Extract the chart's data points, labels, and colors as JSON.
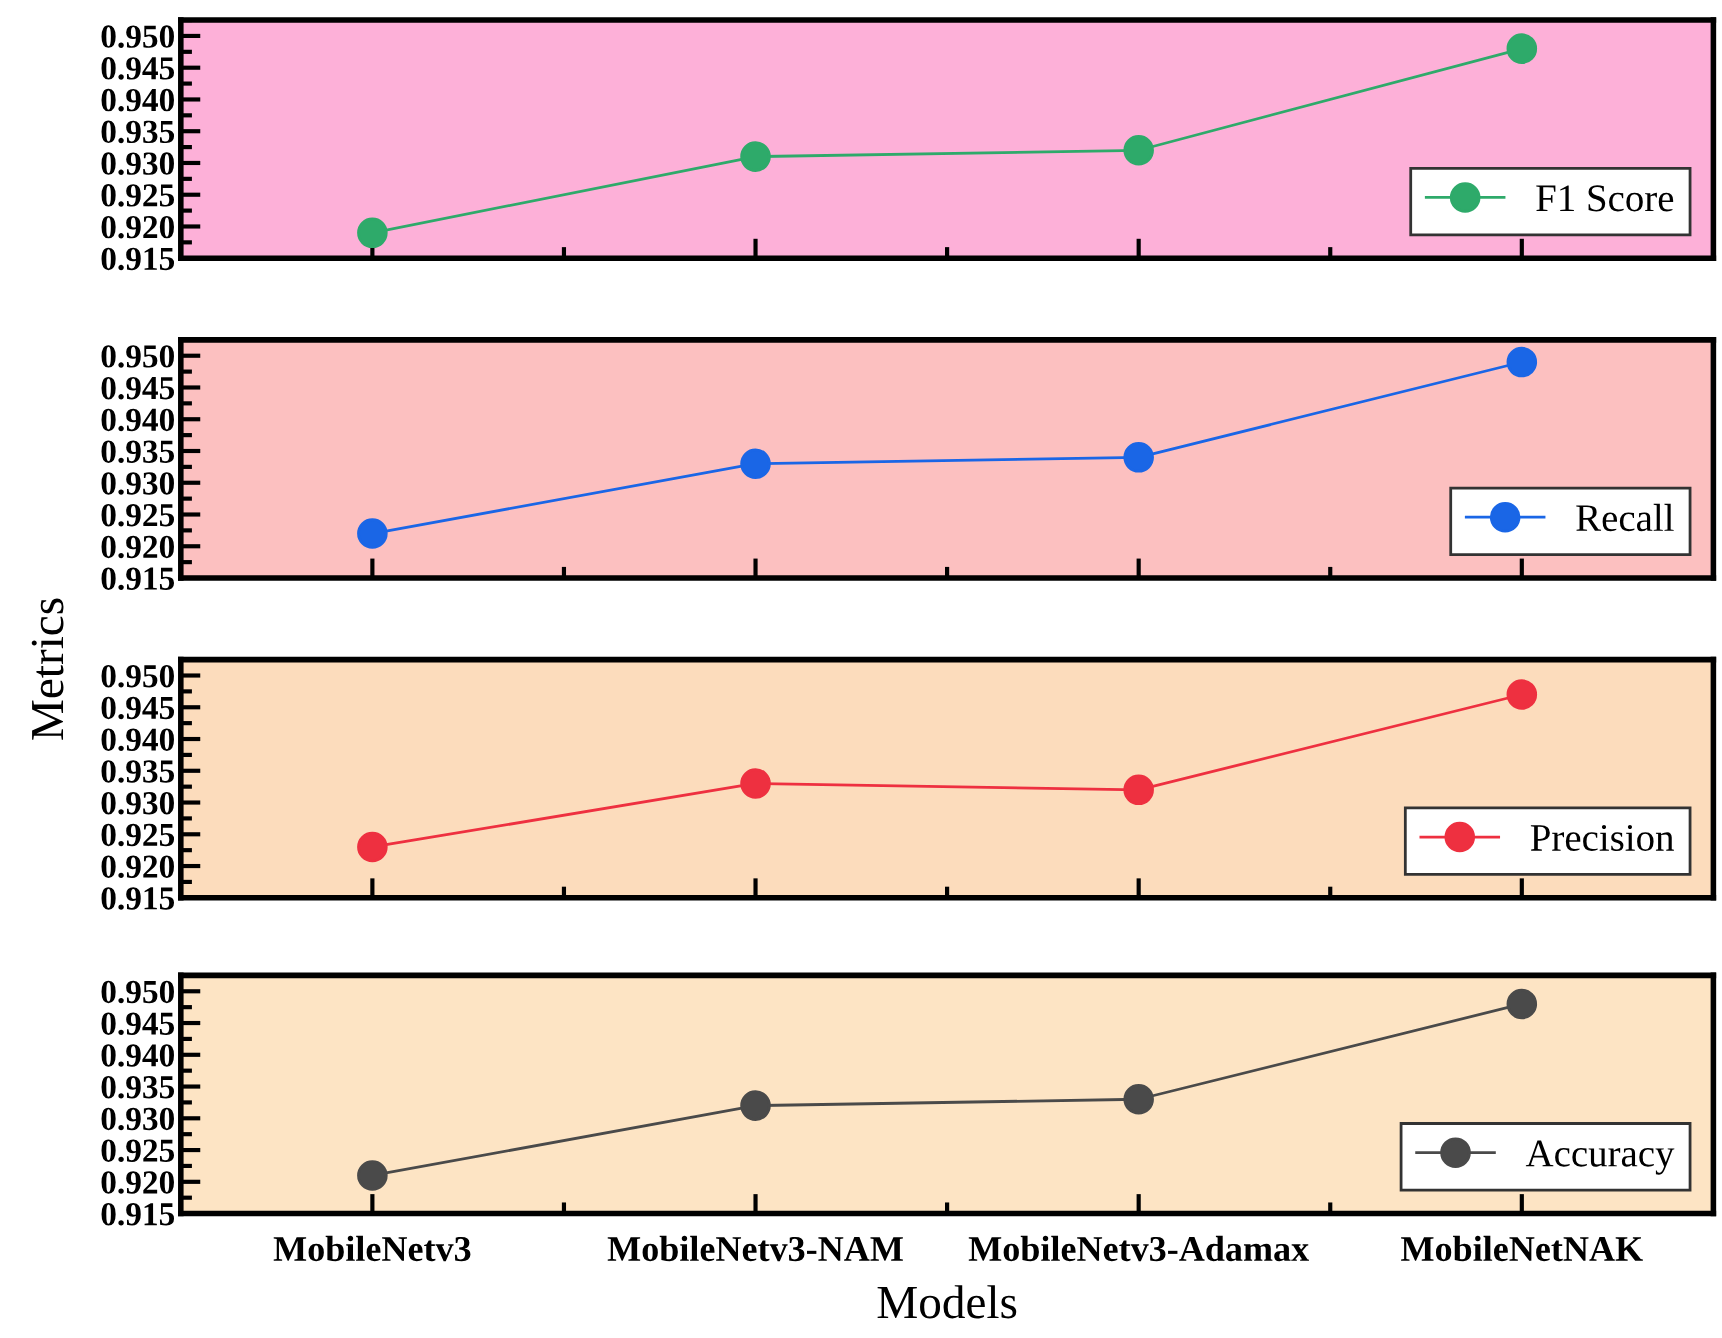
{
  "chart_data": [
    {
      "type": "line",
      "series": [
        {
          "name": "F1 Score",
          "color": "#2eaa6a",
          "values": [
            0.919,
            0.931,
            0.932,
            0.948
          ]
        }
      ],
      "ylim": [
        0.915,
        0.9525
      ],
      "yticks": [
        {
          "value": 0.915,
          "label": "0.915"
        },
        {
          "value": 0.92,
          "label": "0.920"
        },
        {
          "value": 0.925,
          "label": "0.925"
        },
        {
          "value": 0.93,
          "label": "0.930"
        },
        {
          "value": 0.935,
          "label": "0.935"
        },
        {
          "value": 0.94,
          "label": "0.940"
        },
        {
          "value": 0.945,
          "label": "0.945"
        },
        {
          "value": 0.95,
          "label": "0.950"
        }
      ],
      "legend": "bottom right",
      "marker": "circle",
      "tick_labels": "y"
    },
    {
      "type": "line",
      "series": [
        {
          "name": "Recall",
          "color": "#1a66e6",
          "values": [
            0.922,
            0.933,
            0.934,
            0.949
          ]
        }
      ],
      "ylim": [
        0.915,
        0.9525
      ],
      "yticks": [
        {
          "value": 0.915,
          "label": "0.915"
        },
        {
          "value": 0.92,
          "label": "0.920"
        },
        {
          "value": 0.925,
          "label": "0.925"
        },
        {
          "value": 0.93,
          "label": "0.930"
        },
        {
          "value": 0.935,
          "label": "0.935"
        },
        {
          "value": 0.94,
          "label": "0.940"
        },
        {
          "value": 0.945,
          "label": "0.945"
        },
        {
          "value": 0.95,
          "label": "0.950"
        }
      ],
      "legend": "bottom right",
      "marker": "circle",
      "tick_labels": "y",
      "ylabel": "Metrics"
    },
    {
      "type": "line",
      "series": [
        {
          "name": "Precision",
          "color": "#ee3040",
          "values": [
            0.923,
            0.933,
            0.932,
            0.947
          ]
        }
      ],
      "ylim": [
        0.915,
        0.9525
      ],
      "yticks": [
        {
          "value": 0.915,
          "label": "0.915"
        },
        {
          "value": 0.92,
          "label": "0.920"
        },
        {
          "value": 0.925,
          "label": "0.925"
        },
        {
          "value": 0.93,
          "label": "0.930"
        },
        {
          "value": 0.935,
          "label": "0.935"
        },
        {
          "value": 0.94,
          "label": "0.940"
        },
        {
          "value": 0.945,
          "label": "0.945"
        },
        {
          "value": 0.95,
          "label": "0.950"
        }
      ],
      "legend": "bottom right",
      "marker": "circle",
      "tick_labels": "y"
    },
    {
      "type": "line",
      "categories": [
        "MobileNetv3",
        "MobileNetv3-NAM",
        "MobileNetv3-Adamax",
        "MobileNetNAK"
      ],
      "series": [
        {
          "name": "Accuracy",
          "color": "#4a4a4a",
          "values": [
            0.921,
            0.932,
            0.933,
            0.948
          ]
        }
      ],
      "ylim": [
        0.915,
        0.9525
      ],
      "yticks": [
        {
          "value": 0.915,
          "label": "0.915"
        },
        {
          "value": 0.92,
          "label": "0.920"
        },
        {
          "value": 0.925,
          "label": "0.925"
        },
        {
          "value": 0.93,
          "label": "0.930"
        },
        {
          "value": 0.935,
          "label": "0.935"
        },
        {
          "value": 0.94,
          "label": "0.940"
        },
        {
          "value": 0.945,
          "label": "0.945"
        },
        {
          "value": 0.95,
          "label": "0.950"
        }
      ],
      "legend": "bottom right",
      "marker": "circle",
      "xlabel": "Models"
    }
  ]
}
